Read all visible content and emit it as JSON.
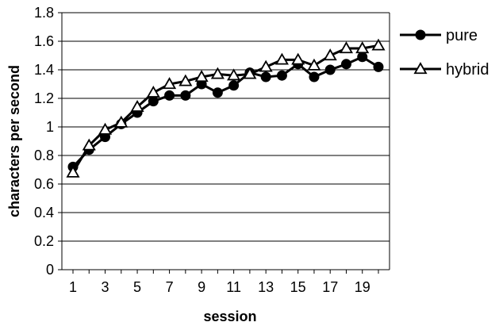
{
  "chart_data": {
    "type": "line",
    "xlabel": "session",
    "ylabel": "characters per second",
    "ylim": [
      0,
      1.8
    ],
    "yticks": [
      "0",
      "0.2",
      "0.4",
      "0.6",
      "0.8",
      "1",
      "1.2",
      "1.4",
      "1.6",
      "1.8"
    ],
    "xlim": [
      1,
      20
    ],
    "xticks": [
      "1",
      "3",
      "5",
      "7",
      "9",
      "11",
      "13",
      "15",
      "17",
      "19"
    ],
    "grid": "horizontal",
    "legend_position": "right",
    "x": [
      1,
      2,
      3,
      4,
      5,
      6,
      7,
      8,
      9,
      10,
      11,
      12,
      13,
      14,
      15,
      16,
      17,
      18,
      19,
      20
    ],
    "series": [
      {
        "name": "pure",
        "marker": "filled-circle",
        "values": [
          0.72,
          0.84,
          0.93,
          1.02,
          1.1,
          1.18,
          1.22,
          1.22,
          1.3,
          1.24,
          1.29,
          1.38,
          1.35,
          1.36,
          1.44,
          1.35,
          1.4,
          1.44,
          1.49,
          1.42
        ]
      },
      {
        "name": "hybrid",
        "marker": "open-triangle",
        "values": [
          0.68,
          0.87,
          0.98,
          1.03,
          1.14,
          1.24,
          1.3,
          1.32,
          1.35,
          1.37,
          1.36,
          1.37,
          1.42,
          1.47,
          1.47,
          1.43,
          1.5,
          1.55,
          1.55,
          1.57
        ]
      }
    ]
  }
}
